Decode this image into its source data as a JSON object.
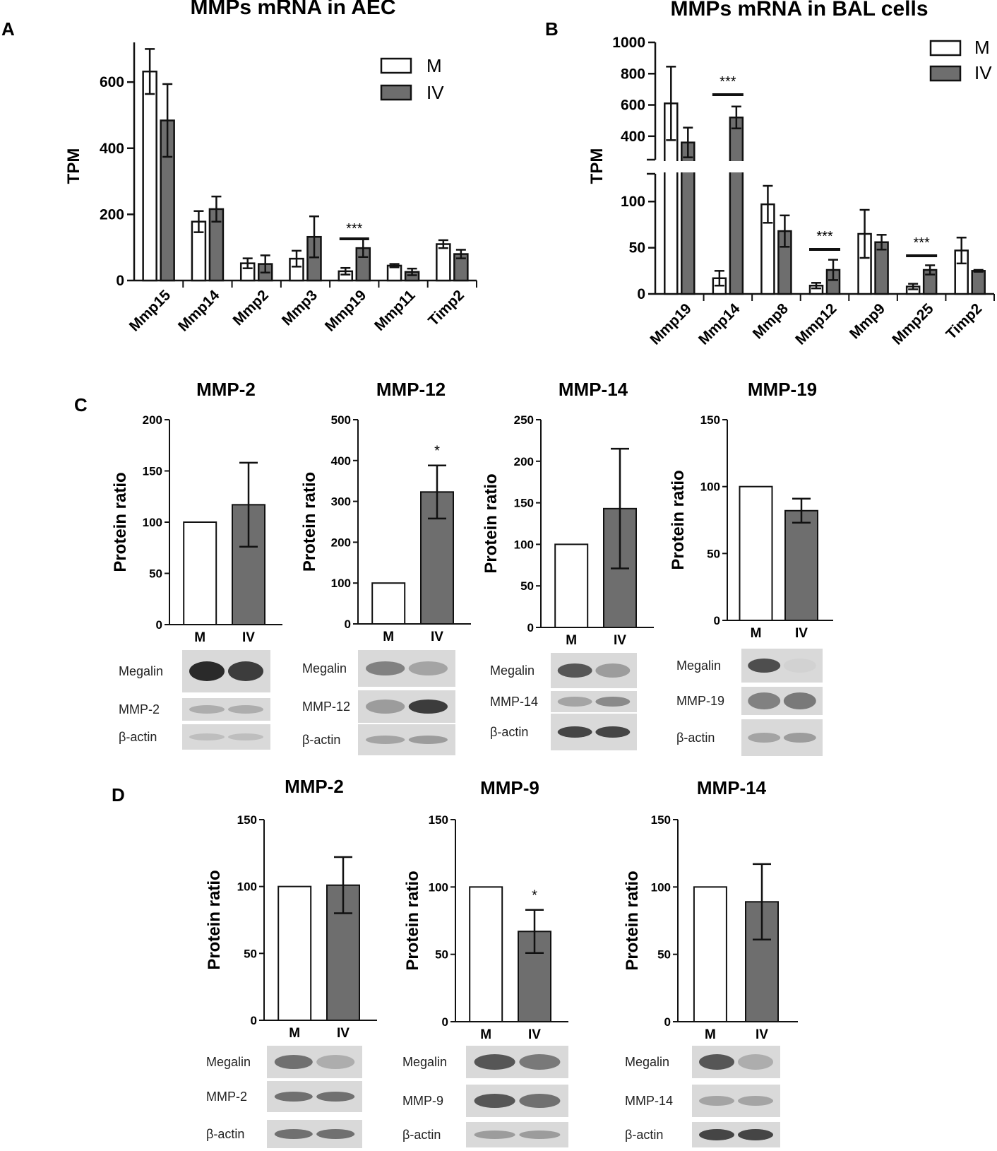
{
  "panels": {
    "a": "A",
    "b": "B",
    "c": "C",
    "d": "D"
  },
  "chart_data": [
    {
      "id": "A",
      "type": "bar",
      "title": "MMPs mRNA in AEC",
      "ylabel": "TPM",
      "categories": [
        "Mmp15",
        "Mmp14",
        "Mmp2",
        "Mmp3",
        "Mmp19",
        "Mmp11",
        "Timp2"
      ],
      "series": [
        {
          "name": "M",
          "values": [
            632,
            178,
            52,
            66,
            28,
            45,
            110
          ],
          "errors": [
            68,
            32,
            15,
            24,
            10,
            5,
            12
          ]
        },
        {
          "name": "IV",
          "values": [
            484,
            216,
            50,
            132,
            98,
            26,
            80
          ],
          "errors": [
            110,
            38,
            26,
            62,
            27,
            10,
            13
          ]
        }
      ],
      "yticks": [
        0,
        200,
        400,
        600
      ],
      "ylim": [
        0,
        720
      ],
      "significance": [
        {
          "category": "Mmp19",
          "label": "***"
        }
      ],
      "legend": "top-right"
    },
    {
      "id": "B",
      "type": "bar",
      "title": "MMPs mRNA in BAL cells",
      "ylabel": "TPM",
      "categories": [
        "Mmp19",
        "Mmp14",
        "Mmp8",
        "Mmp12",
        "Mmp9",
        "Mmp25",
        "Timp2"
      ],
      "series": [
        {
          "name": "M",
          "values": [
            610,
            17,
            97,
            9,
            65,
            8,
            47
          ],
          "errors": [
            235,
            8,
            20,
            3,
            26,
            3,
            14
          ]
        },
        {
          "name": "IV",
          "values": [
            360,
            520,
            68,
            26,
            56,
            26,
            25
          ],
          "errors": [
            95,
            70,
            17,
            11,
            8,
            5,
            1
          ]
        }
      ],
      "yticks": [
        0,
        50,
        100,
        400,
        600,
        800,
        1000
      ],
      "axis_break": {
        "lower": [
          0,
          130
        ],
        "upper": [
          250,
          1000
        ]
      },
      "significance": [
        {
          "category": "Mmp14",
          "label": "***"
        },
        {
          "category": "Mmp12",
          "label": "***"
        },
        {
          "category": "Mmp25",
          "label": "***"
        }
      ],
      "legend": "top-right"
    }
  ],
  "protein_charts": [
    {
      "id": "C1",
      "title": "MMP-2",
      "ylabel": "Protein ratio",
      "ymax": 200,
      "yticks": [
        0,
        50,
        100,
        150,
        200
      ],
      "categories": [
        "M",
        "IV"
      ],
      "values": [
        100,
        117
      ],
      "errors": [
        0,
        41
      ],
      "sig": "",
      "blots": [
        "Megalin",
        "MMP-2",
        "β-actin"
      ]
    },
    {
      "id": "C2",
      "title": "MMP-12",
      "ylabel": "Protein ratio",
      "ymax": 500,
      "yticks": [
        0,
        100,
        200,
        300,
        400,
        500
      ],
      "categories": [
        "M",
        "IV"
      ],
      "values": [
        100,
        323
      ],
      "errors": [
        0,
        65
      ],
      "sig": "*",
      "blots": [
        "Megalin",
        "MMP-12",
        "β-actin"
      ]
    },
    {
      "id": "C3",
      "title": "MMP-14",
      "ylabel": "Protein ratio",
      "ymax": 250,
      "yticks": [
        0,
        50,
        100,
        150,
        200,
        250
      ],
      "categories": [
        "M",
        "IV"
      ],
      "values": [
        100,
        143
      ],
      "errors": [
        0,
        72
      ],
      "sig": "",
      "blots": [
        "Megalin",
        "MMP-14",
        "β-actin"
      ]
    },
    {
      "id": "C4",
      "title": "MMP-19",
      "ylabel": "Protein ratio",
      "ymax": 150,
      "yticks": [
        0,
        50,
        100,
        150
      ],
      "categories": [
        "M",
        "IV"
      ],
      "values": [
        100,
        82
      ],
      "errors": [
        0,
        9
      ],
      "sig": "",
      "blots": [
        "Megalin",
        "MMP-19",
        "β-actin"
      ]
    },
    {
      "id": "D1",
      "title": "MMP-2",
      "ylabel": "Protein ratio",
      "ymax": 150,
      "yticks": [
        0,
        50,
        100,
        150
      ],
      "categories": [
        "M",
        "IV"
      ],
      "values": [
        100,
        101
      ],
      "errors": [
        0,
        21
      ],
      "sig": "",
      "blots": [
        "Megalin",
        "MMP-2",
        "β-actin"
      ]
    },
    {
      "id": "D2",
      "title": "MMP-9",
      "ylabel": "Protein ratio",
      "ymax": 150,
      "yticks": [
        0,
        50,
        100,
        150
      ],
      "categories": [
        "M",
        "IV"
      ],
      "values": [
        100,
        67
      ],
      "errors": [
        0,
        16
      ],
      "sig": "*",
      "blots": [
        "Megalin",
        "MMP-9",
        "β-actin"
      ]
    },
    {
      "id": "D3",
      "title": "MMP-14",
      "ylabel": "Protein ratio",
      "ymax": 150,
      "yticks": [
        0,
        50,
        100,
        150
      ],
      "categories": [
        "M",
        "IV"
      ],
      "values": [
        100,
        89
      ],
      "errors": [
        0,
        28
      ],
      "sig": "",
      "blots": [
        "Megalin",
        "MMP-14",
        "β-actin"
      ]
    }
  ],
  "colors": {
    "m_fill": "#ffffff",
    "iv_fill": "#6e6e6e",
    "axis": "#111111",
    "blot_bg": "#d9d9d9",
    "band": "#2a2a2a"
  }
}
